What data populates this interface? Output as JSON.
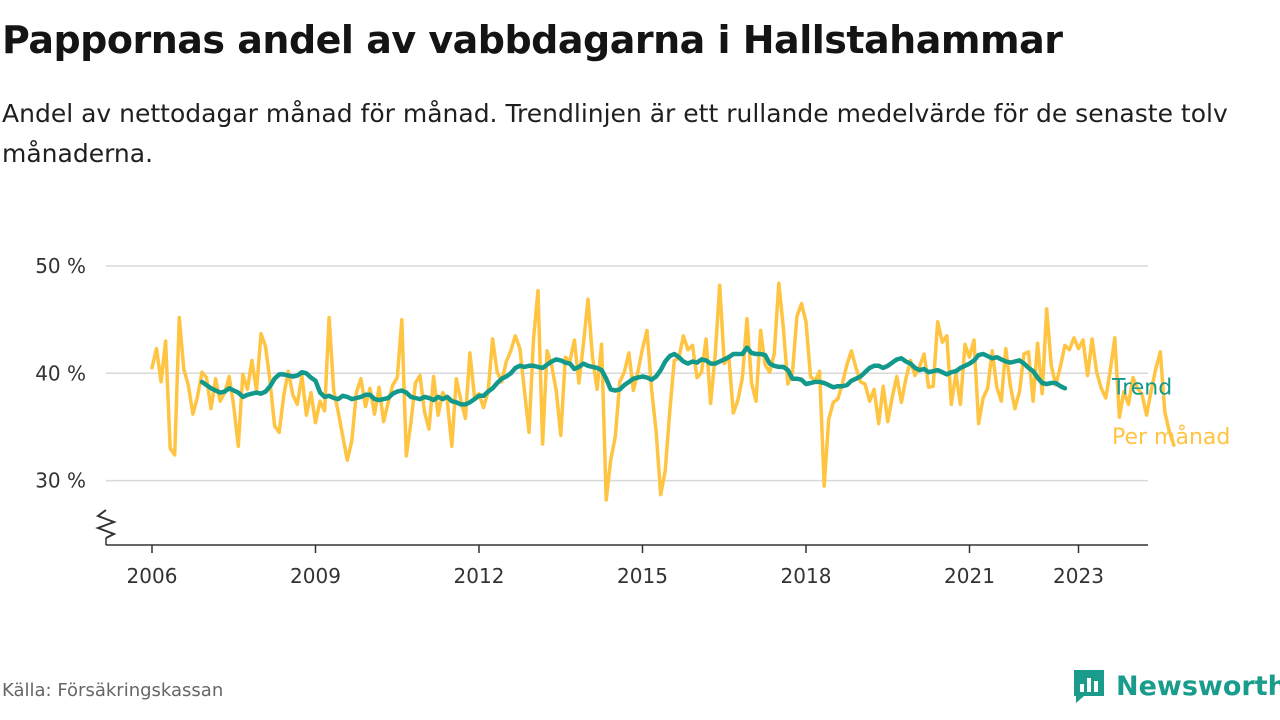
{
  "title": "Pappornas andel av vabbdagarna i Hallstahammar",
  "subtitle": "Andel av nettodagar månad för månad. Trendlinjen är ett rullande medelvärde för de senaste tolv månaderna.",
  "source": "Källa: Försäkringskassan",
  "brand": {
    "name": "Newsworthy",
    "icon": "bar-chart-speech-bubble-icon"
  },
  "colors": {
    "monthly": "#ffc442",
    "trend": "#13998b",
    "grid": "#d9d9d9",
    "axis": "#333333"
  },
  "chart_data": {
    "type": "line",
    "title": "Pappornas andel av vabbdagarna i Hallstahammar",
    "xlabel": "",
    "ylabel": "",
    "x_ticks": [
      "2006",
      "2009",
      "2012",
      "2015",
      "2018",
      "2021",
      "2023"
    ],
    "y_ticks": [
      "30 %",
      "40 %",
      "50 %"
    ],
    "ylim": [
      24,
      50
    ],
    "xlim": [
      2005.0,
      2024.0
    ],
    "axis_break": true,
    "grid": "horizontal",
    "series": [
      {
        "name": "Per månad",
        "key": "monthly",
        "x_start": 2006.0,
        "step_months": 1,
        "values": [
          40.5,
          42.3,
          39.2,
          43,
          33,
          32.4,
          45.2,
          40.4,
          38.9,
          36.2,
          37.8,
          40.1,
          39.6,
          36.7,
          39.5,
          37.4,
          38.2,
          39.7,
          36.9,
          33.2,
          39.9,
          38.5,
          41.2,
          38.4,
          43.7,
          42.5,
          39.2,
          35.1,
          34.5,
          37.9,
          40.2,
          38,
          37.1,
          39.8,
          36.1,
          38.2,
          35.4,
          37.4,
          36.5,
          45.2,
          38.4,
          36.4,
          34.1,
          31.9,
          33.7,
          38.2,
          39.5,
          36.9,
          38.6,
          36.2,
          38.7,
          35.5,
          37.3,
          38.9,
          39.6,
          45,
          32.3,
          35.4,
          39.1,
          39.8,
          36.4,
          34.8,
          39.7,
          36.1,
          38.2,
          37.5,
          33.2,
          39.5,
          37.5,
          35.8,
          41.9,
          37.8,
          38.1,
          36.8,
          38.3,
          43.2,
          40.1,
          39.2,
          41.1,
          42.1,
          43.5,
          42.3,
          38.4,
          34.5,
          43.2,
          47.7,
          33.4,
          42.1,
          40.7,
          38.4,
          34.2,
          41.5,
          41.1,
          43.1,
          39.1,
          42.8,
          46.9,
          41.5,
          38.5,
          42.7,
          28.2,
          31.9,
          34.1,
          39.2,
          40.1,
          41.9,
          38.4,
          40.2,
          42.3,
          44,
          38.5,
          34.6,
          28.7,
          30.9,
          36.5,
          41.2,
          41.4,
          43.5,
          42.2,
          42.6,
          39.6,
          40.1,
          43.2,
          37.2,
          41.7,
          48.2,
          40.9,
          41.6,
          36.3,
          37.5,
          39.6,
          45.1,
          39.1,
          37.4,
          44,
          40.8,
          40.1,
          41.8,
          48.4,
          44.3,
          39,
          40,
          45.3,
          46.5,
          44.8,
          39.7,
          39.3,
          40.2,
          29.5,
          35.7,
          37.3,
          37.6,
          39,
          40.8,
          42.1,
          40.5,
          39.2,
          39,
          37.4,
          38.5,
          35.3,
          38.8,
          35.5,
          37.8,
          39.7,
          37.3,
          39.5,
          41.2,
          39.8,
          40.6,
          41.8,
          38.7,
          38.8,
          44.8,
          42.9,
          43.5,
          37.1,
          40,
          37.1,
          42.7,
          41.5,
          43.1,
          35.3,
          37.7,
          38.6,
          42.1,
          38.7,
          37.4,
          42.3,
          38.8,
          36.7,
          38.3,
          41.8,
          42,
          37.4,
          42.8,
          38.1,
          46,
          40.7,
          38.9,
          40.6,
          42.6,
          42.2,
          43.3,
          42.3,
          43.1,
          39.8,
          43.2,
          40.1,
          38.6,
          37.7,
          40.3,
          43.3,
          35.9,
          38.3,
          37.1,
          39.6,
          38.6,
          38,
          36.1,
          38.4,
          40.4,
          42,
          36.4,
          34.6,
          33.3
        ]
      },
      {
        "name": "Trend",
        "key": "trend",
        "x_start": 2006.917,
        "step_months": 1,
        "values": [
          39.2,
          38.9,
          38.6,
          38.4,
          38.2,
          38.3,
          38.6,
          38.4,
          38.2,
          37.8,
          38,
          38.1,
          38.2,
          38.1,
          38.3,
          38.8,
          39.5,
          39.9,
          39.9,
          39.8,
          39.7,
          39.8,
          40.1,
          40,
          39.6,
          39.3,
          38.2,
          37.8,
          37.9,
          37.7,
          37.6,
          37.9,
          37.8,
          37.6,
          37.7,
          37.8,
          38,
          38,
          37.6,
          37.5,
          37.6,
          37.7,
          38.1,
          38.3,
          38.4,
          38.2,
          37.8,
          37.7,
          37.6,
          37.8,
          37.7,
          37.5,
          37.8,
          37.6,
          37.8,
          37.4,
          37.3,
          37.1,
          37.1,
          37.3,
          37.6,
          37.9,
          37.9,
          38.3,
          38.6,
          39.1,
          39.5,
          39.7,
          40,
          40.5,
          40.7,
          40.6,
          40.7,
          40.7,
          40.6,
          40.5,
          40.8,
          41.1,
          41.3,
          41.2,
          41,
          40.9,
          40.4,
          40.6,
          40.9,
          40.7,
          40.6,
          40.5,
          40.3,
          39.5,
          38.5,
          38.4,
          38.5,
          38.9,
          39.2,
          39.5,
          39.6,
          39.7,
          39.6,
          39.4,
          39.7,
          40.3,
          41.1,
          41.6,
          41.8,
          41.5,
          41.1,
          40.9,
          41.1,
          41,
          41.3,
          41.2,
          40.9,
          40.9,
          41.1,
          41.3,
          41.5,
          41.8,
          41.8,
          41.8,
          42.4,
          41.9,
          41.8,
          41.8,
          41.7,
          40.9,
          40.7,
          40.6,
          40.6,
          40.3,
          39.5,
          39.5,
          39.4,
          39,
          39.1,
          39.2,
          39.2,
          39.1,
          38.9,
          38.7,
          38.8,
          38.8,
          38.9,
          39.3,
          39.5,
          39.7,
          40.1,
          40.5,
          40.7,
          40.7,
          40.5,
          40.7,
          41,
          41.3,
          41.4,
          41.1,
          40.9,
          40.5,
          40.3,
          40.4,
          40.1,
          40.2,
          40.3,
          40.1,
          39.9,
          40.1,
          40.2,
          40.5,
          40.7,
          40.9,
          41.2,
          41.7,
          41.8,
          41.6,
          41.4,
          41.5,
          41.3,
          41.1,
          41,
          41.1,
          41.2,
          40.9,
          40.5,
          40.2,
          39.6,
          39.1,
          39,
          39.1,
          39.1,
          38.8,
          38.6
        ]
      }
    ]
  },
  "labels": {
    "trend": "Trend",
    "monthly": "Per månad"
  }
}
